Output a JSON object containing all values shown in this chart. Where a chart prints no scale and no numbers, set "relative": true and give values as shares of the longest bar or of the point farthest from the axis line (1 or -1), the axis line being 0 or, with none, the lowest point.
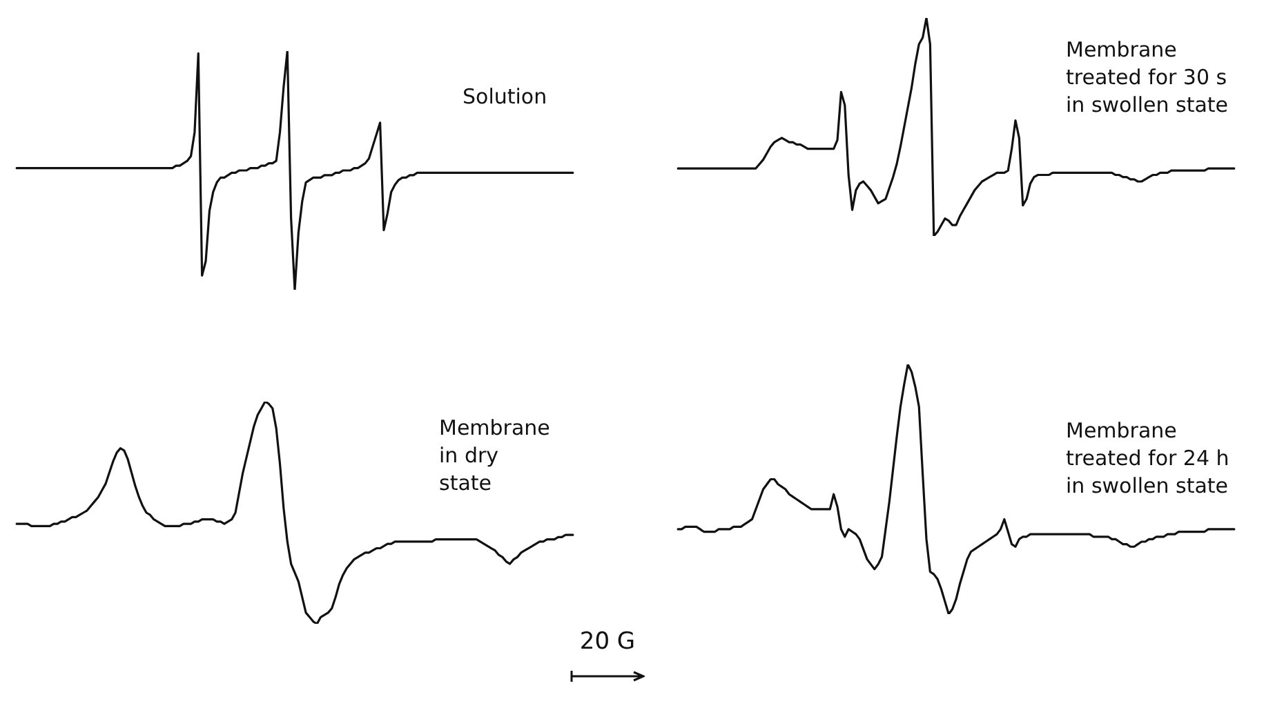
{
  "chart_data": [
    {
      "type": "line",
      "title": "Solution",
      "relative": true,
      "marker": "none",
      "line_style": "solid",
      "color": "#111111",
      "categories": [
        null,
        null,
        null,
        null,
        null,
        null,
        null,
        null,
        null,
        null,
        null,
        null,
        null,
        null,
        null,
        null,
        null,
        null,
        null,
        null,
        null,
        null,
        null,
        null,
        null,
        null,
        null,
        null,
        null,
        null,
        null,
        null,
        null,
        null,
        null,
        null,
        null,
        null,
        null,
        null,
        null,
        null,
        null,
        null,
        null,
        null,
        null,
        null,
        null,
        null,
        null,
        null,
        null,
        null,
        null,
        null,
        null,
        null,
        null,
        null,
        null,
        null,
        null,
        null,
        null,
        null,
        null,
        null,
        null,
        null,
        null,
        null,
        null,
        null,
        null,
        null,
        null,
        null,
        null,
        null,
        null,
        null,
        null,
        null,
        null,
        null,
        null,
        null,
        null,
        null,
        null,
        null,
        null,
        null,
        null,
        null,
        null,
        null,
        null,
        null,
        null,
        null,
        null,
        null,
        null,
        null,
        null,
        null,
        null,
        null,
        null,
        null,
        null,
        null,
        null,
        null,
        null,
        null,
        null,
        null,
        null,
        null,
        null,
        null,
        null,
        null,
        null,
        null,
        null,
        null,
        null,
        null,
        null,
        null,
        null,
        null,
        null,
        null,
        null,
        null,
        null,
        null,
        null,
        null,
        null,
        null,
        null,
        null,
        null,
        null,
        null
      ],
      "values": [
        0.51,
        0.51,
        0.51,
        0.51,
        0.51,
        0.51,
        0.51,
        0.51,
        0.51,
        0.51,
        0.51,
        0.51,
        0.51,
        0.51,
        0.51,
        0.51,
        0.51,
        0.51,
        0.51,
        0.51,
        0.51,
        0.51,
        0.51,
        0.51,
        0.51,
        0.51,
        0.51,
        0.51,
        0.51,
        0.51,
        0.51,
        0.51,
        0.51,
        0.51,
        0.51,
        0.51,
        0.51,
        0.51,
        0.51,
        0.51,
        0.51,
        0.51,
        0.51,
        0.52,
        0.52,
        0.53,
        0.54,
        0.56,
        0.66,
        0.99,
        0.06,
        0.12,
        0.33,
        0.41,
        0.45,
        0.47,
        0.47,
        0.48,
        0.49,
        0.49,
        0.5,
        0.5,
        0.5,
        0.51,
        0.51,
        0.51,
        0.52,
        0.52,
        0.53,
        0.53,
        0.54,
        0.66,
        0.85,
        1.0,
        0.3,
        0,
        0.24,
        0.37,
        0.45,
        0.46,
        0.47,
        0.47,
        0.47,
        0.48,
        0.48,
        0.48,
        0.49,
        0.49,
        0.5,
        0.5,
        0.5,
        0.51,
        0.51,
        0.52,
        0.53,
        0.55,
        0.6,
        0.65,
        0.7,
        0.25,
        0.32,
        0.41,
        0.44,
        0.46,
        0.47,
        0.47,
        0.48,
        0.48,
        0.49,
        0.49,
        0.49,
        0.49,
        0.49,
        0.49,
        0.49,
        0.49,
        0.49,
        0.49,
        0.49,
        0.49,
        0.49,
        0.49,
        0.49,
        0.49,
        0.49,
        0.49,
        0.49,
        0.49,
        0.49,
        0.49,
        0.49,
        0.49,
        0.49,
        0.49,
        0.49,
        0.49,
        0.49,
        0.49,
        0.49,
        0.49,
        0.49,
        0.49,
        0.49,
        0.49,
        0.49,
        0.49,
        0.49,
        0.49,
        0.49,
        0.49,
        0.49
      ]
    },
    {
      "type": "line",
      "title": "Membrane\ntreated for 30 s\nin swollen state",
      "relative": true,
      "marker": "none",
      "line_style": "solid",
      "color": "#111111",
      "categories": [
        null,
        null,
        null,
        null,
        null,
        null,
        null,
        null,
        null,
        null,
        null,
        null,
        null,
        null,
        null,
        null,
        null,
        null,
        null,
        null,
        null,
        null,
        null,
        null,
        null,
        null,
        null,
        null,
        null,
        null,
        null,
        null,
        null,
        null,
        null,
        null,
        null,
        null,
        null,
        null,
        null,
        null,
        null,
        null,
        null,
        null,
        null,
        null,
        null,
        null,
        null,
        null,
        null,
        null,
        null,
        null,
        null,
        null,
        null,
        null,
        null,
        null,
        null,
        null,
        null,
        null,
        null,
        null,
        null,
        null,
        null,
        null,
        null,
        null,
        null,
        null,
        null,
        null,
        null,
        null,
        null,
        null,
        null,
        null,
        null,
        null,
        null,
        null,
        null,
        null,
        null,
        null,
        null,
        null,
        null,
        null,
        null,
        null,
        null,
        null,
        null,
        null,
        null,
        null,
        null,
        null,
        null,
        null,
        null,
        null,
        null,
        null,
        null,
        null,
        null,
        null,
        null,
        null,
        null,
        null,
        null,
        null,
        null,
        null,
        null,
        null,
        null,
        null,
        null,
        null,
        null,
        null,
        null,
        null,
        null,
        null,
        null,
        null,
        null,
        null,
        null,
        null,
        null,
        null,
        null,
        null,
        null,
        null,
        null,
        null,
        null
      ],
      "values": [
        0.31,
        0.31,
        0.31,
        0.31,
        0.31,
        0.31,
        0.31,
        0.31,
        0.31,
        0.31,
        0.31,
        0.31,
        0.31,
        0.31,
        0.31,
        0.31,
        0.31,
        0.31,
        0.31,
        0.31,
        0.31,
        0.31,
        0.33,
        0.35,
        0.38,
        0.41,
        0.43,
        0.44,
        0.45,
        0.44,
        0.43,
        0.43,
        0.42,
        0.42,
        0.41,
        0.4,
        0.4,
        0.4,
        0.4,
        0.4,
        0.4,
        0.4,
        0.4,
        0.44,
        0.66,
        0.6,
        0.28,
        0.12,
        0.21,
        0.24,
        0.25,
        0.23,
        0.21,
        0.18,
        0.15,
        0.16,
        0.17,
        0.22,
        0.27,
        0.33,
        0.41,
        0.5,
        0.59,
        0.68,
        0.79,
        0.88,
        0.91,
        1.0,
        0.88,
        0,
        0.02,
        0.05,
        0.08,
        0.07,
        0.05,
        0.05,
        0.09,
        0.12,
        0.15,
        0.18,
        0.21,
        0.23,
        0.25,
        0.26,
        0.27,
        0.28,
        0.29,
        0.29,
        0.29,
        0.3,
        0.4,
        0.53,
        0.45,
        0.14,
        0.17,
        0.24,
        0.27,
        0.28,
        0.28,
        0.28,
        0.28,
        0.29,
        0.29,
        0.29,
        0.29,
        0.29,
        0.29,
        0.29,
        0.29,
        0.29,
        0.29,
        0.29,
        0.29,
        0.29,
        0.29,
        0.29,
        0.29,
        0.29,
        0.28,
        0.28,
        0.27,
        0.27,
        0.26,
        0.26,
        0.25,
        0.25,
        0.26,
        0.27,
        0.28,
        0.28,
        0.29,
        0.29,
        0.29,
        0.3,
        0.3,
        0.3,
        0.3,
        0.3,
        0.3,
        0.3,
        0.3,
        0.3,
        0.3,
        0.31,
        0.31,
        0.31,
        0.31,
        0.31,
        0.31,
        0.31,
        0.31
      ]
    },
    {
      "type": "line",
      "title": "Membrane\nin dry\nstate",
      "relative": true,
      "marker": "none",
      "line_style": "solid",
      "color": "#111111",
      "annotations": [
        "20 G"
      ],
      "categories": [
        null,
        null,
        null,
        null,
        null,
        null,
        null,
        null,
        null,
        null,
        null,
        null,
        null,
        null,
        null,
        null,
        null,
        null,
        null,
        null,
        null,
        null,
        null,
        null,
        null,
        null,
        null,
        null,
        null,
        null,
        null,
        null,
        null,
        null,
        null,
        null,
        null,
        null,
        null,
        null,
        null,
        null,
        null,
        null,
        null,
        null,
        null,
        null,
        null,
        null,
        null,
        null,
        null,
        null,
        null,
        null,
        null,
        null,
        null,
        null,
        null,
        null,
        null,
        null,
        null,
        null,
        null,
        null,
        null,
        null,
        null,
        null,
        null,
        null,
        null,
        null,
        null,
        null,
        null,
        null,
        null,
        null,
        null,
        null,
        null,
        null,
        null,
        null,
        null,
        null,
        null,
        null,
        null,
        null,
        null,
        null,
        null,
        null,
        null,
        null,
        null,
        null,
        null,
        null,
        null,
        null,
        null,
        null,
        null,
        null,
        null,
        null,
        null,
        null,
        null,
        null,
        null,
        null,
        null,
        null,
        null,
        null,
        null,
        null,
        null,
        null,
        null,
        null,
        null,
        null,
        null,
        null,
        null,
        null,
        null,
        null,
        null,
        null,
        null,
        null,
        null,
        null,
        null,
        null,
        null,
        null,
        null,
        null,
        null,
        null,
        null
      ],
      "values": [
        0.45,
        0.45,
        0.45,
        0.45,
        0.44,
        0.44,
        0.44,
        0.44,
        0.44,
        0.44,
        0.45,
        0.45,
        0.46,
        0.46,
        0.47,
        0.48,
        0.48,
        0.49,
        0.5,
        0.51,
        0.53,
        0.55,
        0.57,
        0.6,
        0.63,
        0.68,
        0.73,
        0.77,
        0.79,
        0.78,
        0.74,
        0.68,
        0.62,
        0.57,
        0.53,
        0.5,
        0.49,
        0.47,
        0.46,
        0.45,
        0.44,
        0.44,
        0.44,
        0.44,
        0.44,
        0.45,
        0.45,
        0.45,
        0.46,
        0.46,
        0.47,
        0.47,
        0.47,
        0.47,
        0.46,
        0.46,
        0.45,
        0.46,
        0.47,
        0.5,
        0.59,
        0.68,
        0.75,
        0.82,
        0.89,
        0.94,
        0.97,
        1.0,
        0.99,
        0.97,
        0.88,
        0.72,
        0.52,
        0.37,
        0.27,
        0.23,
        0.19,
        0.12,
        0.05,
        0.03,
        0.01,
        0,
        0.03,
        0.04,
        0.05,
        0.07,
        0.12,
        0.18,
        0.22,
        0.25,
        0.27,
        0.29,
        0.3,
        0.31,
        0.32,
        0.32,
        0.33,
        0.34,
        0.34,
        0.35,
        0.36,
        0.36,
        0.37,
        0.37,
        0.37,
        0.37,
        0.37,
        0.37,
        0.37,
        0.37,
        0.37,
        0.37,
        0.37,
        0.38,
        0.38,
        0.38,
        0.38,
        0.38,
        0.38,
        0.38,
        0.38,
        0.38,
        0.38,
        0.38,
        0.38,
        0.37,
        0.36,
        0.35,
        0.34,
        0.33,
        0.31,
        0.3,
        0.28,
        0.27,
        0.29,
        0.3,
        0.32,
        0.33,
        0.34,
        0.35,
        0.36,
        0.37,
        0.37,
        0.38,
        0.38,
        0.38,
        0.39,
        0.39,
        0.4,
        0.4,
        0.4
      ]
    },
    {
      "type": "line",
      "title": "Membrane\ntreated for 24 h\nin swollen state",
      "relative": true,
      "marker": "none",
      "line_style": "solid",
      "color": "#111111",
      "categories": [
        null,
        null,
        null,
        null,
        null,
        null,
        null,
        null,
        null,
        null,
        null,
        null,
        null,
        null,
        null,
        null,
        null,
        null,
        null,
        null,
        null,
        null,
        null,
        null,
        null,
        null,
        null,
        null,
        null,
        null,
        null,
        null,
        null,
        null,
        null,
        null,
        null,
        null,
        null,
        null,
        null,
        null,
        null,
        null,
        null,
        null,
        null,
        null,
        null,
        null,
        null,
        null,
        null,
        null,
        null,
        null,
        null,
        null,
        null,
        null,
        null,
        null,
        null,
        null,
        null,
        null,
        null,
        null,
        null,
        null,
        null,
        null,
        null,
        null,
        null,
        null,
        null,
        null,
        null,
        null,
        null,
        null,
        null,
        null,
        null,
        null,
        null,
        null,
        null,
        null,
        null,
        null,
        null,
        null,
        null,
        null,
        null,
        null,
        null,
        null,
        null,
        null,
        null,
        null,
        null,
        null,
        null,
        null,
        null,
        null,
        null,
        null,
        null,
        null,
        null,
        null,
        null,
        null,
        null,
        null,
        null,
        null,
        null,
        null,
        null,
        null,
        null,
        null,
        null,
        null,
        null,
        null,
        null,
        null,
        null,
        null,
        null,
        null,
        null,
        null,
        null,
        null,
        null,
        null,
        null,
        null,
        null,
        null,
        null,
        null,
        null
      ],
      "values": [
        0.34,
        0.34,
        0.35,
        0.35,
        0.35,
        0.35,
        0.34,
        0.33,
        0.33,
        0.33,
        0.33,
        0.34,
        0.34,
        0.34,
        0.34,
        0.35,
        0.35,
        0.35,
        0.36,
        0.37,
        0.38,
        0.42,
        0.46,
        0.5,
        0.52,
        0.54,
        0.54,
        0.52,
        0.51,
        0.5,
        0.48,
        0.47,
        0.46,
        0.45,
        0.44,
        0.43,
        0.42,
        0.42,
        0.42,
        0.42,
        0.42,
        0.42,
        0.48,
        0.43,
        0.34,
        0.31,
        0.34,
        0.33,
        0.32,
        0.3,
        0.26,
        0.22,
        0.2,
        0.18,
        0.2,
        0.23,
        0.34,
        0.45,
        0.58,
        0.71,
        0.83,
        0.92,
        1.0,
        0.97,
        0.91,
        0.83,
        0.56,
        0.3,
        0.17,
        0.16,
        0.14,
        0.1,
        0.05,
        0,
        0.02,
        0.06,
        0.12,
        0.17,
        0.22,
        0.25,
        0.26,
        0.27,
        0.28,
        0.29,
        0.3,
        0.31,
        0.32,
        0.34,
        0.38,
        0.33,
        0.28,
        0.27,
        0.3,
        0.31,
        0.31,
        0.32,
        0.32,
        0.32,
        0.32,
        0.32,
        0.32,
        0.32,
        0.32,
        0.32,
        0.32,
        0.32,
        0.32,
        0.32,
        0.32,
        0.32,
        0.32,
        0.32,
        0.31,
        0.31,
        0.31,
        0.31,
        0.31,
        0.3,
        0.3,
        0.29,
        0.28,
        0.28,
        0.27,
        0.27,
        0.28,
        0.29,
        0.29,
        0.3,
        0.3,
        0.31,
        0.31,
        0.31,
        0.32,
        0.32,
        0.32,
        0.33,
        0.33,
        0.33,
        0.33,
        0.33,
        0.33,
        0.33,
        0.33,
        0.34,
        0.34,
        0.34,
        0.34,
        0.34,
        0.34,
        0.34,
        0.34
      ]
    }
  ]
}
